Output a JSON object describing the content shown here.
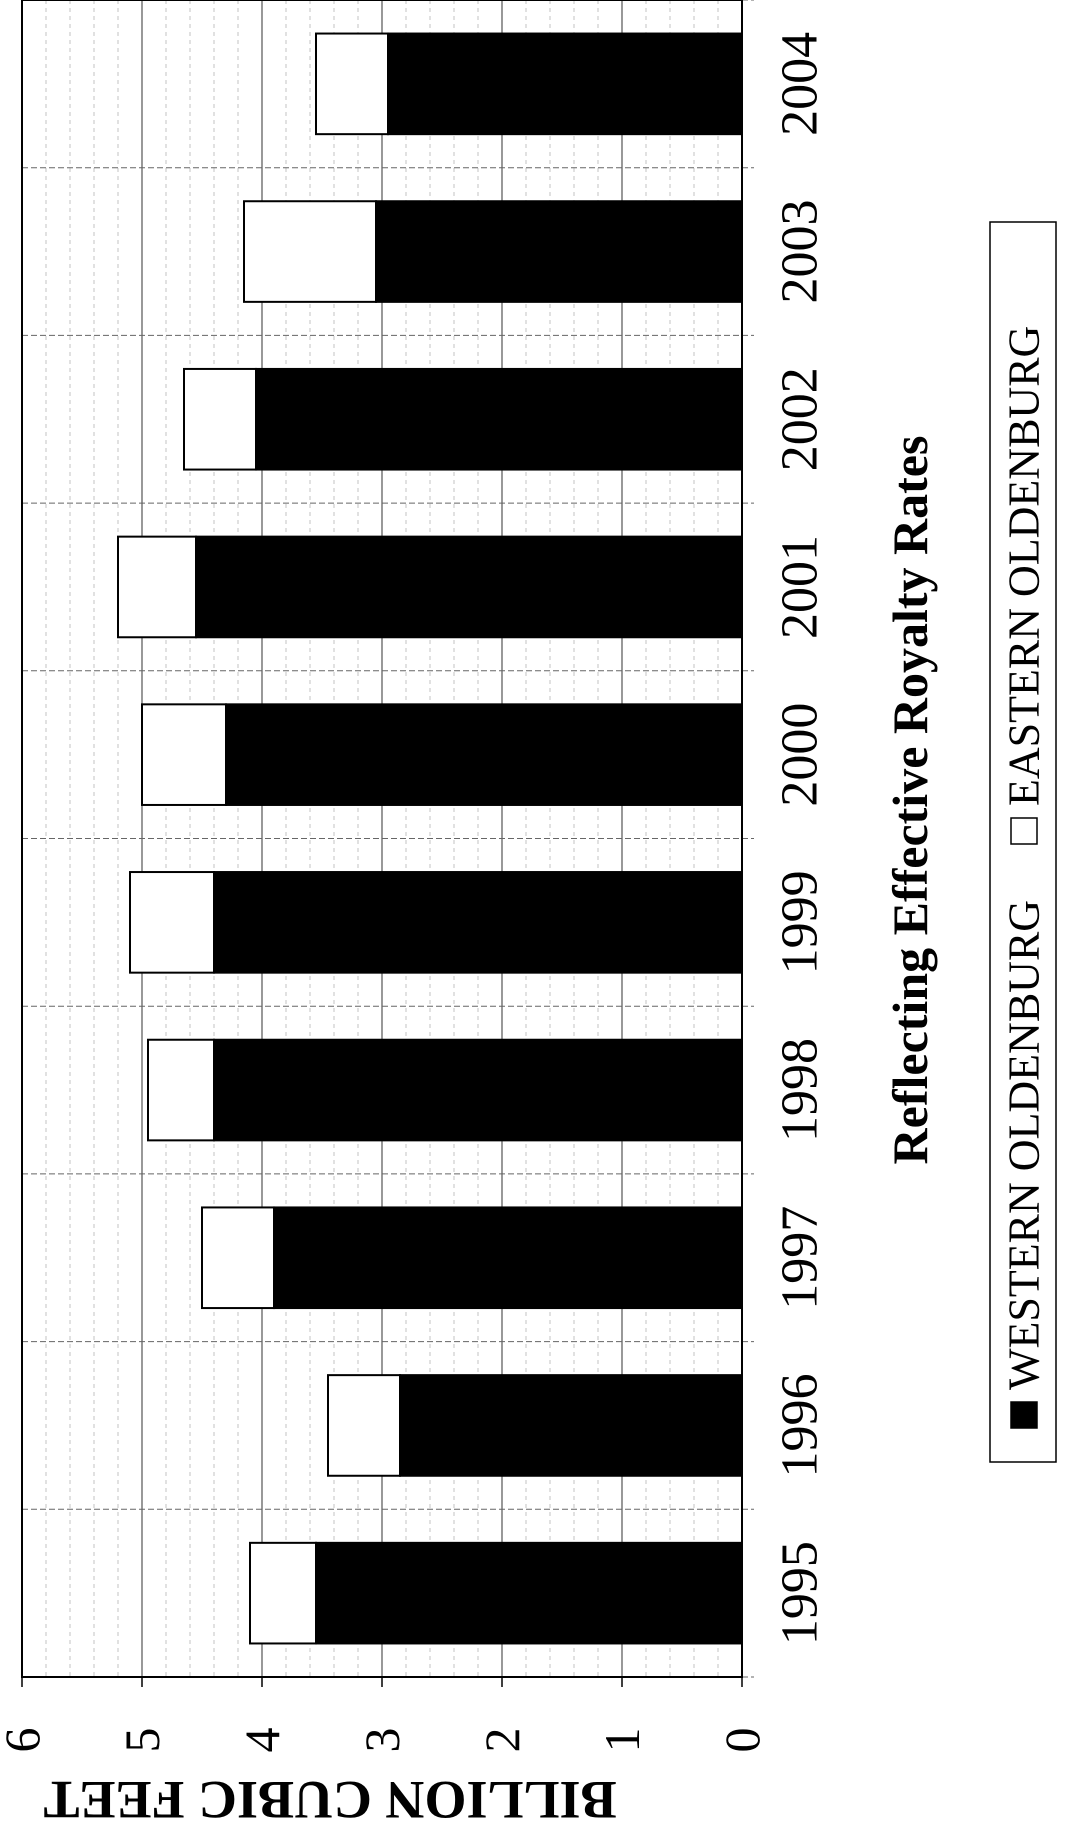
{
  "chart_data": {
    "type": "bar",
    "stacked": true,
    "orientation": "rotated-90",
    "title": "Reflecting Effective Royalty Rates",
    "ylabel": "BILLION CUBIC FEET",
    "categories": [
      "1995",
      "1996",
      "1997",
      "1998",
      "1999",
      "2000",
      "2001",
      "2002",
      "2003",
      "2004"
    ],
    "series": [
      {
        "name": "WESTERN OLDENBURG",
        "color": "#000000",
        "values": [
          3.55,
          2.85,
          3.9,
          4.4,
          4.4,
          4.3,
          4.55,
          4.05,
          3.05,
          2.95
        ]
      },
      {
        "name": "EASTERN OLDENBURG",
        "color": "#ffffff",
        "values": [
          0.55,
          0.6,
          0.6,
          0.55,
          0.7,
          0.7,
          0.65,
          0.6,
          1.1,
          0.6
        ]
      }
    ],
    "ylim": [
      0,
      6
    ],
    "yticks": [
      "0",
      "1",
      "2",
      "3",
      "4",
      "5",
      "6"
    ],
    "grid": true,
    "legend": "bottom"
  }
}
